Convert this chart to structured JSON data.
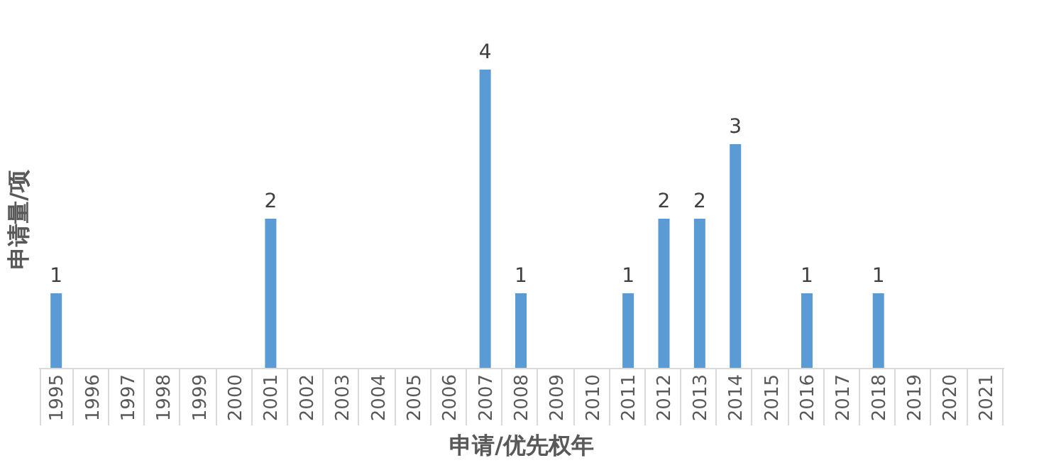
{
  "chart_data": {
    "type": "bar",
    "xlabel": "申请/优先权年",
    "ylabel": "申请量/项",
    "categories": [
      "1995",
      "1996",
      "1997",
      "1998",
      "1999",
      "2000",
      "2001",
      "2002",
      "2003",
      "2004",
      "2005",
      "2006",
      "2007",
      "2008",
      "2009",
      "2010",
      "2011",
      "2012",
      "2013",
      "2014",
      "2015",
      "2016",
      "2017",
      "2018",
      "2019",
      "2020",
      "2021"
    ],
    "values": [
      1,
      0,
      0,
      0,
      0,
      0,
      2,
      0,
      0,
      0,
      0,
      0,
      4,
      1,
      0,
      0,
      1,
      2,
      2,
      3,
      0,
      1,
      0,
      1,
      0,
      0,
      0
    ],
    "value_labels": [
      "1",
      null,
      null,
      null,
      null,
      null,
      "2",
      null,
      null,
      null,
      null,
      null,
      "4",
      "1",
      null,
      null,
      "1",
      "2",
      "2",
      "3",
      null,
      "1",
      null,
      "1",
      null,
      null,
      null
    ],
    "color": "#5b9bd5",
    "tick_labels": "x",
    "grid": false
  }
}
